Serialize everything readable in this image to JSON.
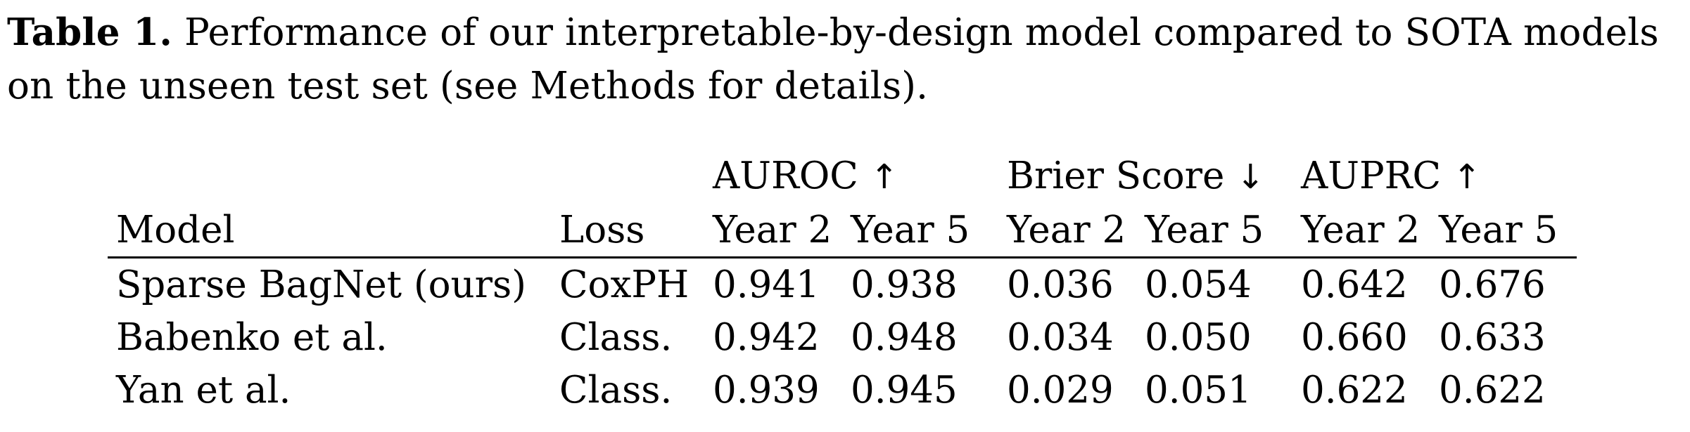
{
  "caption": {
    "label": "Table 1.",
    "line1": " Performance of our interpretable-by-design model compared to SOTA models",
    "line2": "on the unseen test set (see Methods for details)."
  },
  "table": {
    "group_headers": [
      {
        "label": "AUROC",
        "arrow": "↑"
      },
      {
        "label": "Brier Score",
        "arrow": "↓"
      },
      {
        "label": "AUPRC",
        "arrow": "↑"
      }
    ],
    "columns": {
      "model": "Model",
      "loss": "Loss",
      "sub": [
        "Year 2",
        "Year 5",
        "Year 2",
        "Year 5",
        "Year 2",
        "Year 5"
      ]
    },
    "rows": [
      {
        "model": "Sparse BagNet (ours)",
        "loss": "CoxPH",
        "values": [
          "0.941",
          "0.938",
          "0.036",
          "0.054",
          "0.642",
          "0.676"
        ]
      },
      {
        "model": "Babenko et al.",
        "loss": "Class.",
        "values": [
          "0.942",
          "0.948",
          "0.034",
          "0.050",
          "0.660",
          "0.633"
        ]
      },
      {
        "model": "Yan et al.",
        "loss": "Class.",
        "values": [
          "0.939",
          "0.945",
          "0.029",
          "0.051",
          "0.622",
          "0.622"
        ]
      }
    ]
  }
}
